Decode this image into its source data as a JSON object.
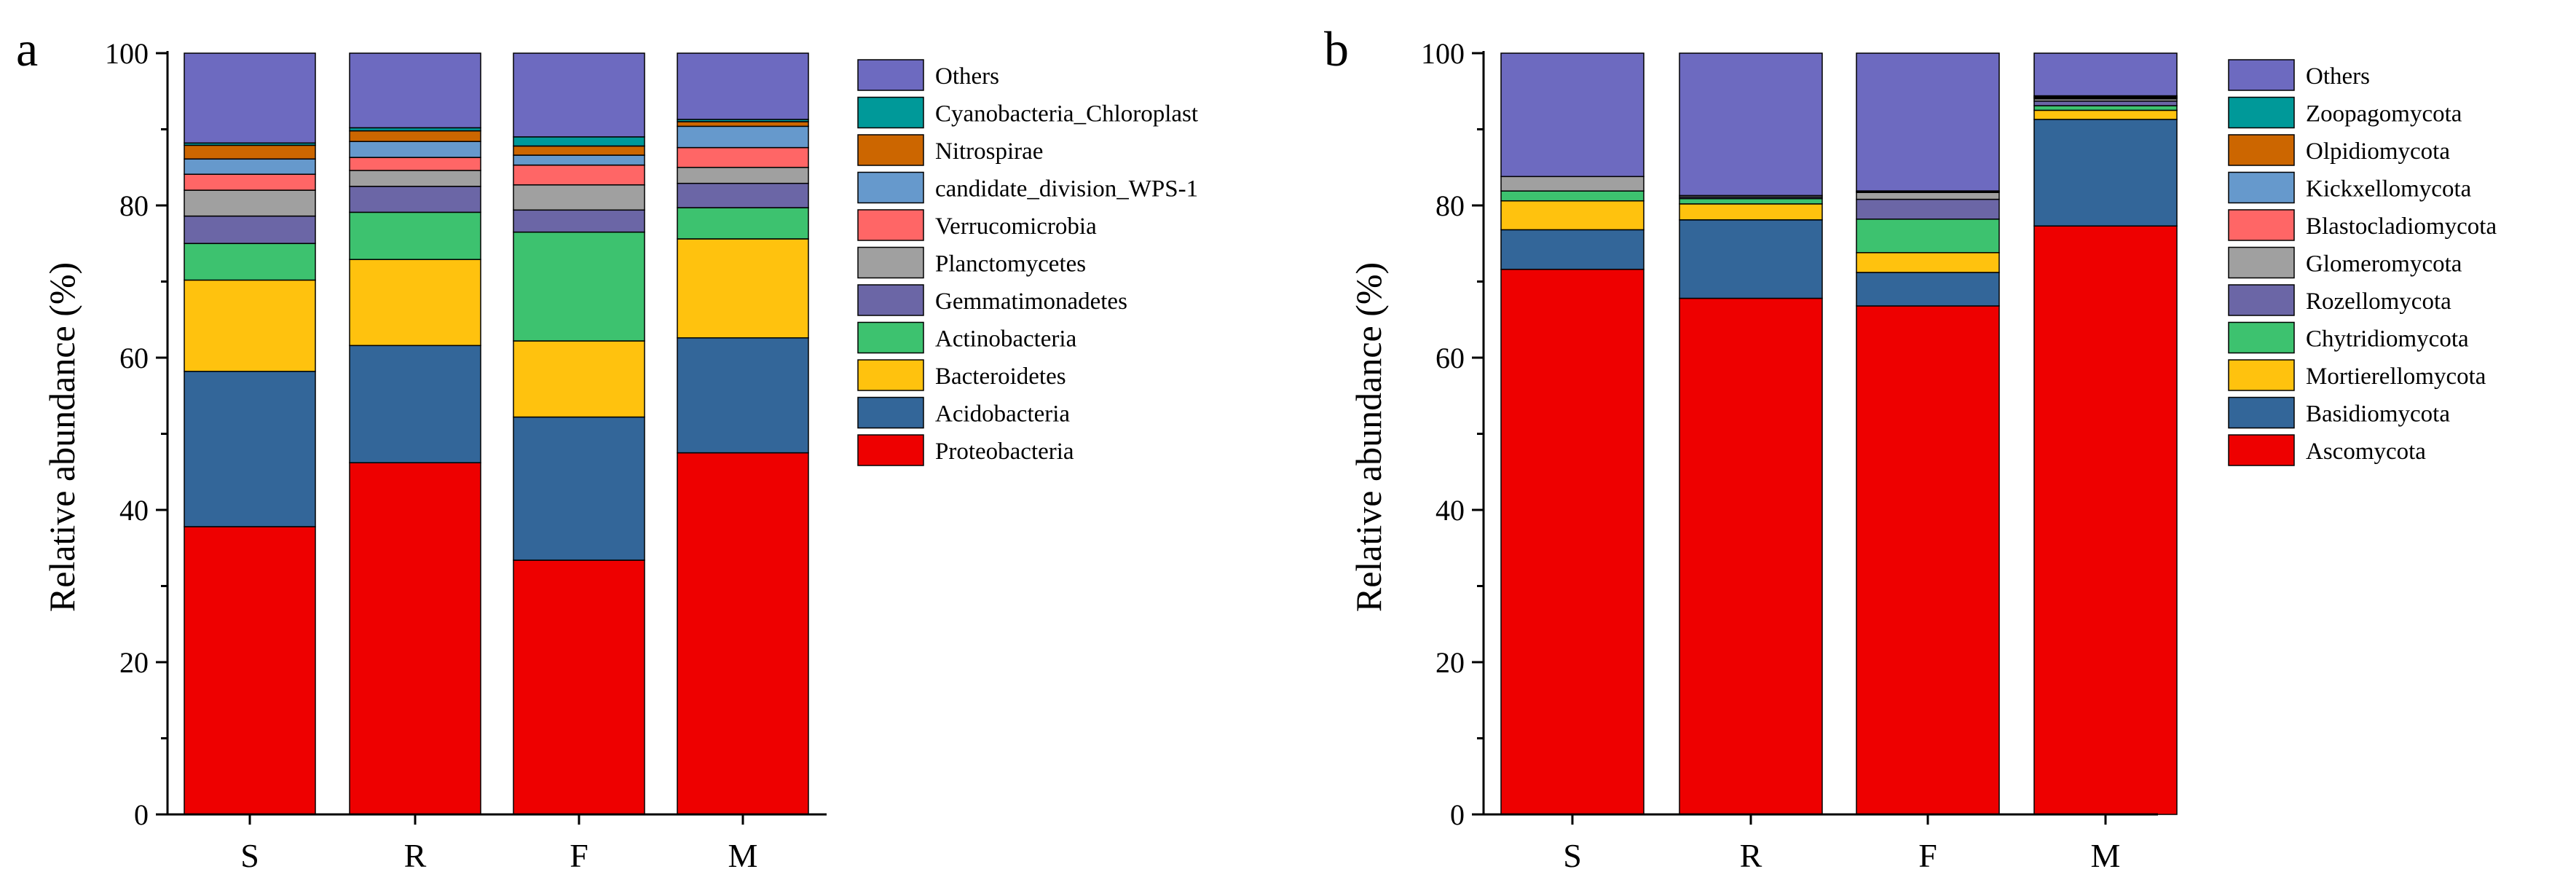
{
  "chart_data": [
    {
      "type": "bar",
      "stacked": true,
      "panel_label": "a",
      "title": "",
      "xlabel": "",
      "ylabel": "Relative abundance (%)",
      "ylim": [
        0,
        100
      ],
      "yticks": [
        "0",
        "20",
        "40",
        "60",
        "80",
        "100"
      ],
      "categories": [
        "S",
        "R",
        "F",
        "M"
      ],
      "legend_position": "right",
      "series": [
        {
          "name": "Proteobacteria",
          "color": "#ee0000",
          "values": [
            37.8,
            46.2,
            33.4,
            47.5
          ]
        },
        {
          "name": "Acidobacteria",
          "color": "#336699",
          "values": [
            20.4,
            15.4,
            18.8,
            15.1
          ]
        },
        {
          "name": "Bacteroidetes",
          "color": "#ffc20e",
          "values": [
            12.0,
            11.3,
            10.0,
            13.0
          ]
        },
        {
          "name": "Actinobacteria",
          "color": "#3dc26f",
          "values": [
            4.8,
            6.2,
            14.3,
            4.1
          ]
        },
        {
          "name": "Gemmatimonadetes",
          "color": "#6b66a6",
          "values": [
            3.6,
            3.4,
            2.9,
            3.2
          ]
        },
        {
          "name": "Planctomycetes",
          "color": "#a0a0a0",
          "values": [
            3.4,
            2.1,
            3.3,
            2.1
          ]
        },
        {
          "name": "Verrucomicrobia",
          "color": "#ff6666",
          "values": [
            2.1,
            1.7,
            2.6,
            2.6
          ]
        },
        {
          "name": "candidate_division_WPS-1",
          "color": "#6699cc",
          "values": [
            2.0,
            2.1,
            1.3,
            2.8
          ]
        },
        {
          "name": "Nitrospirae",
          "color": "#cc6600",
          "values": [
            1.8,
            1.4,
            1.2,
            0.6
          ]
        },
        {
          "name": "Cyanobacteria_Chloroplast",
          "color": "#009999",
          "values": [
            0.3,
            0.4,
            1.2,
            0.3
          ]
        },
        {
          "name": "Others",
          "color": "#6d6ac0",
          "values": [
            11.8,
            9.8,
            11.0,
            8.7
          ]
        }
      ]
    },
    {
      "type": "bar",
      "stacked": true,
      "panel_label": "b",
      "title": "",
      "xlabel": "",
      "ylabel": "Relative abundance (%)",
      "ylim": [
        0,
        100
      ],
      "yticks": [
        "0",
        "20",
        "40",
        "60",
        "80",
        "100"
      ],
      "categories": [
        "S",
        "R",
        "F",
        "M"
      ],
      "legend_position": "right",
      "series": [
        {
          "name": "Ascomycota",
          "color": "#ee0000",
          "values": [
            71.6,
            67.8,
            66.8,
            77.3
          ]
        },
        {
          "name": "Basidiomycota",
          "color": "#336699",
          "values": [
            5.2,
            10.3,
            4.4,
            14.0
          ]
        },
        {
          "name": "Mortierellomycota",
          "color": "#ffc20e",
          "values": [
            3.8,
            2.1,
            2.6,
            1.2
          ]
        },
        {
          "name": "Chytridiomycota",
          "color": "#3dc26f",
          "values": [
            1.3,
            0.7,
            4.4,
            0.6
          ]
        },
        {
          "name": "Rozellomycota",
          "color": "#6b66a6",
          "values": [
            0.0,
            0.2,
            2.6,
            0.6
          ]
        },
        {
          "name": "Glomeromycota",
          "color": "#a0a0a0",
          "values": [
            1.9,
            0.2,
            0.9,
            0.3
          ]
        },
        {
          "name": "Blastocladiomycota",
          "color": "#ff6666",
          "values": [
            0.0,
            0.0,
            0.1,
            0.1
          ]
        },
        {
          "name": "Kickxellomycota",
          "color": "#6699cc",
          "values": [
            0.0,
            0.0,
            0.1,
            0.1
          ]
        },
        {
          "name": "Olpidiomycota",
          "color": "#cc6600",
          "values": [
            0.0,
            0.0,
            0.0,
            0.1
          ]
        },
        {
          "name": "Zoopagomycota",
          "color": "#009999",
          "values": [
            0.0,
            0.0,
            0.0,
            0.1
          ]
        },
        {
          "name": "Others",
          "color": "#6d6ac0",
          "values": [
            16.2,
            18.7,
            18.1,
            5.6
          ]
        }
      ]
    }
  ]
}
